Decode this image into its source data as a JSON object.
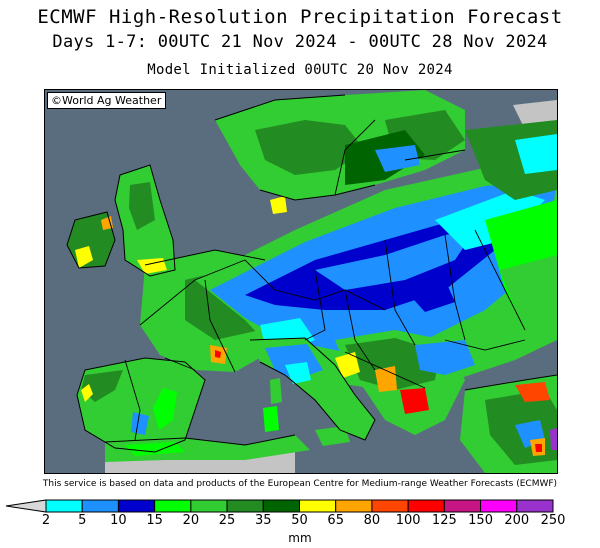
{
  "header": {
    "title": "ECMWF High-Resolution Precipitation Forecast",
    "period": "Days 1-7: 00UTC 21 Nov 2024 - 00UTC 28 Nov 2024",
    "init": "Model Initialized 00UTC 20 Nov 2024"
  },
  "map": {
    "watermark": "©World Ag Weather",
    "region": "Europe",
    "colors": {
      "sea": "#596d7f",
      "no_data_land": "#c4c4c4",
      "border": "#000000"
    }
  },
  "disclaimer": "This service is based on data and products of the European Centre for Medium-range Weather Forecasts (ECMWF)",
  "legend": {
    "units": "mm",
    "levels": [
      "2",
      "5",
      "10",
      "15",
      "20",
      "25",
      "35",
      "50",
      "65",
      "80",
      "100",
      "125",
      "150",
      "200",
      "250"
    ],
    "colors": [
      "#00ffff",
      "#1e90ff",
      "#0000cd",
      "#00ff00",
      "#32cd32",
      "#228b22",
      "#006400",
      "#ffff00",
      "#ffa500",
      "#ff4500",
      "#ff0000",
      "#c71585",
      "#ff00ff",
      "#9932cc"
    ]
  }
}
